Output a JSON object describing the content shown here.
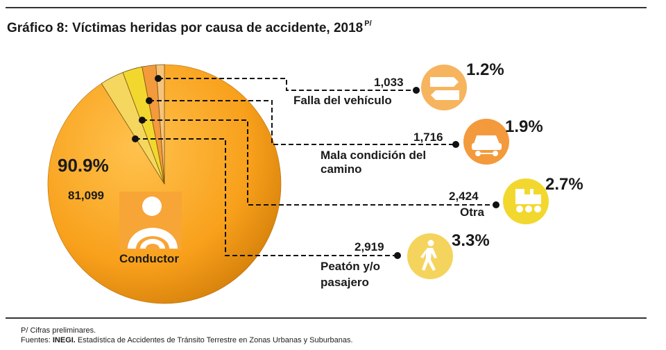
{
  "title": {
    "text": "Gráfico 8: Víctimas heridas por causa de accidente, 2018",
    "superscript": "P/"
  },
  "chart_data": {
    "type": "pie",
    "title": "Gráfico 8: Víctimas heridas por causa de accidente, 2018",
    "slices": [
      {
        "name": "Conductor",
        "value": 81099,
        "percent": "90.9%",
        "value_label": "81,099",
        "color": "#f8a31b",
        "icon": "driver-icon"
      },
      {
        "name": "Falla del vehículo",
        "value": 1033,
        "percent": "1.2%",
        "value_label": "1,033",
        "color": "#f6c37a",
        "icon": "signpost-icon"
      },
      {
        "name": "Mala condición del camino",
        "value": 1716,
        "percent": "1.9%",
        "value_label": "1,716",
        "color": "#f39a3c",
        "icon": "car-icon"
      },
      {
        "name": "Otra",
        "value": 2424,
        "percent": "2.7%",
        "value_label": "2,424",
        "color": "#f2d82e",
        "icon": "train-icon"
      },
      {
        "name": "Peatón y/o pasajero",
        "value": 2919,
        "percent": "3.3%",
        "value_label": "2,919",
        "color": "#f5d760",
        "icon": "pedestrian-icon"
      }
    ]
  },
  "labels": {
    "falla": "Falla del vehículo",
    "camino_1": "Mala condición del",
    "camino_2": "camino",
    "otra": "Otra",
    "peaton_1": "Peatón y/o",
    "peaton_2": "pasajero",
    "conductor": "Conductor"
  },
  "footnotes": {
    "prelim": "P/ Cifras preliminares.",
    "source_prefix": "Fuentes: ",
    "source_org": "INEGI.",
    "source_text": " Estadística de Accidentes de Tránsito Terrestre en Zonas Urbanas y Suburbanas."
  }
}
